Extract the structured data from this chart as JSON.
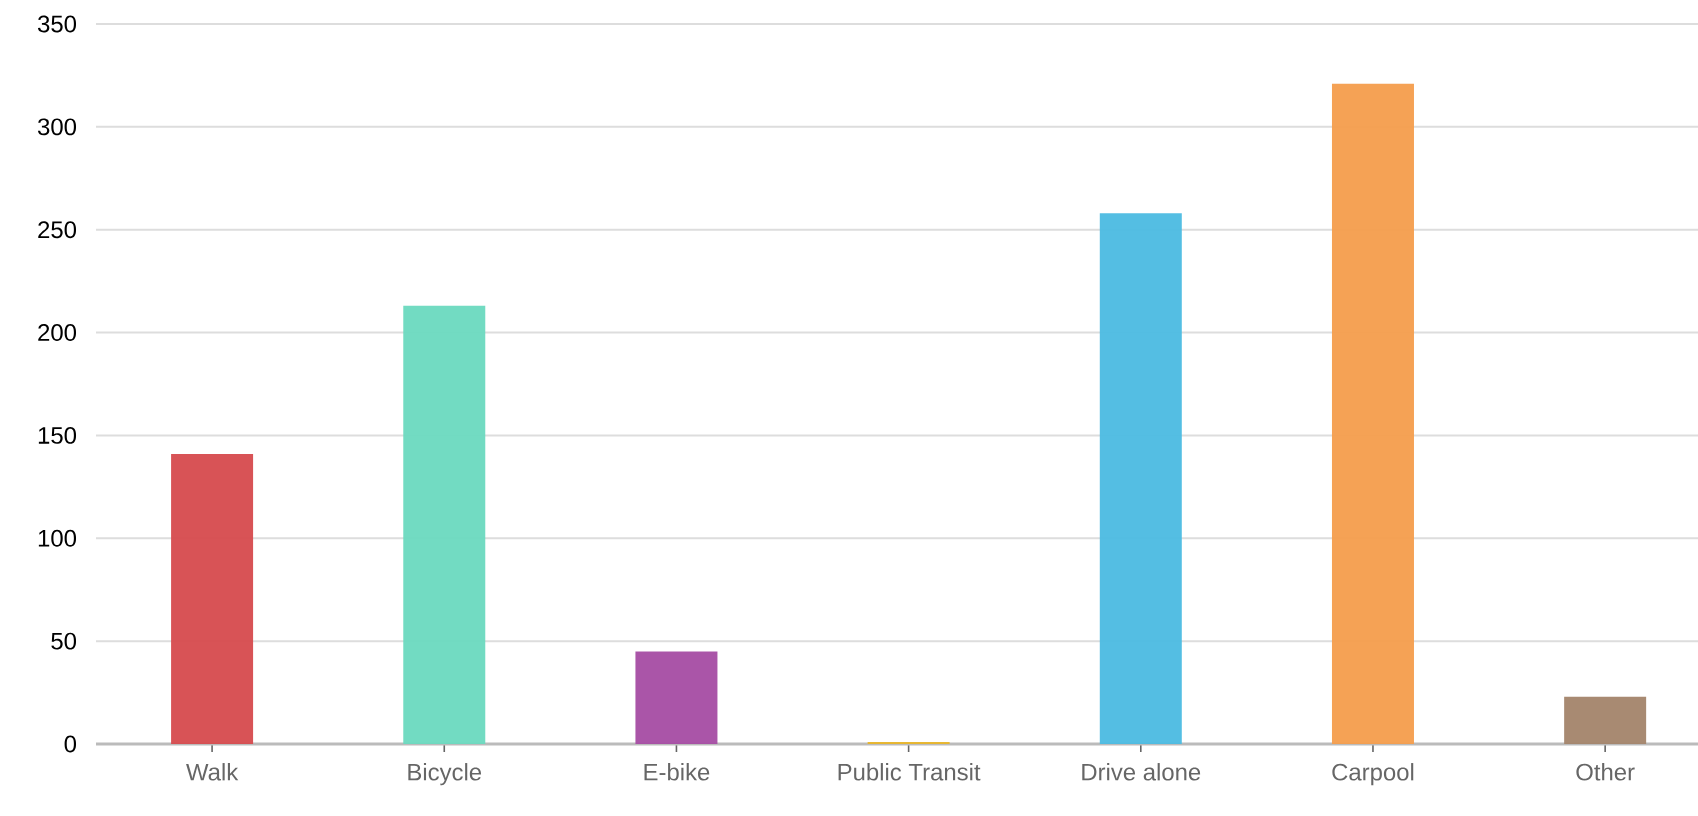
{
  "chart_data": {
    "type": "bar",
    "categories": [
      "Walk",
      "Bicycle",
      "E-bike",
      "Public Transit",
      "Drive alone",
      "Carpool",
      "Other"
    ],
    "values": [
      141,
      213,
      45,
      1,
      258,
      321,
      23
    ],
    "colors": [
      "#d64a4d",
      "#6ad9bf",
      "#a54ca3",
      "#e8b52a",
      "#4bbae1",
      "#f49d4c",
      "#a3846a"
    ],
    "ylim": [
      0,
      350
    ],
    "yticks": [
      0,
      50,
      100,
      150,
      200,
      250,
      300,
      350
    ],
    "grid": "y"
  }
}
